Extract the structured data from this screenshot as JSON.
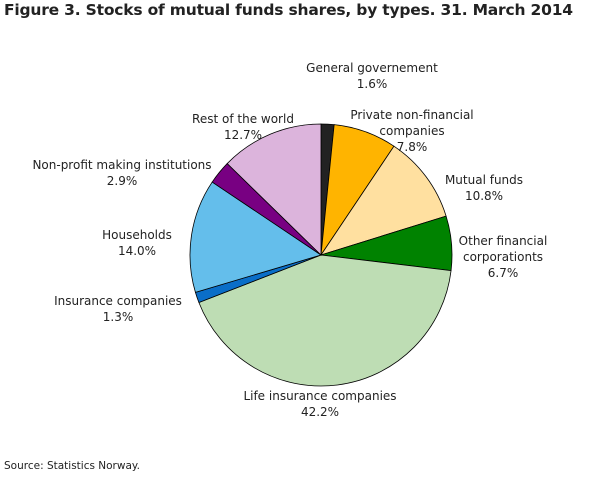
{
  "title": "Figure 3. Stocks of mutual funds shares, by types. 31. March  2014",
  "source": "Source: Statistics Norway.",
  "chart_data": {
    "type": "pie",
    "title": "Figure 3. Stocks of mutual funds shares, by types. 31. March  2014",
    "slices": [
      {
        "label": [
          "General governement"
        ],
        "value_text": "1.6%",
        "value": 1.6,
        "color": "#222222"
      },
      {
        "label": [
          "Private non-financial",
          "companies"
        ],
        "value_text": "7.8%",
        "value": 7.8,
        "color": "#FFB400"
      },
      {
        "label": [
          "Mutual funds"
        ],
        "value_text": "10.8%",
        "value": 10.8,
        "color": "#FFE0A0"
      },
      {
        "label": [
          "Other financial",
          "corporationts"
        ],
        "value_text": "6.7%",
        "value": 6.7,
        "color": "#008200"
      },
      {
        "label": [
          "Life insurance companies"
        ],
        "value_text": "42.2%",
        "value": 42.2,
        "color": "#BEDDB4"
      },
      {
        "label": [
          "Insurance companies"
        ],
        "value_text": "1.3%",
        "value": 1.3,
        "color": "#0A6EC8"
      },
      {
        "label": [
          "Households"
        ],
        "value_text": "14.0%",
        "value": 14.0,
        "color": "#64BEEB"
      },
      {
        "label": [
          "Non-profit making institutions"
        ],
        "value_text": "2.9%",
        "value": 2.9,
        "color": "#780082"
      },
      {
        "label": [
          "Rest of the world"
        ],
        "value_text": "12.7%",
        "value": 12.7,
        "color": "#DCB4DC"
      }
    ]
  }
}
